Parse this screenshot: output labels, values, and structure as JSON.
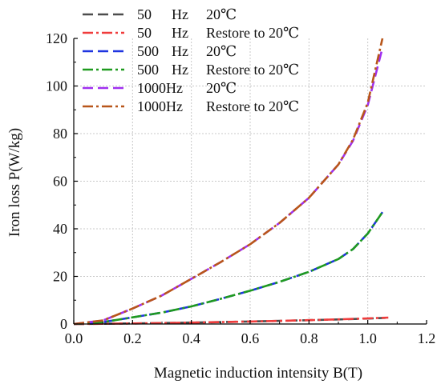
{
  "chart_data": {
    "type": "line",
    "title": "",
    "xlabel": "Magnetic induction intensity B(T)",
    "ylabel": "Iron loss P(W/kg)",
    "xlim": [
      0.0,
      1.2
    ],
    "ylim": [
      0,
      120
    ],
    "xticks": [
      "0.0",
      "0.2",
      "0.4",
      "0.6",
      "0.8",
      "1.0",
      "1.2"
    ],
    "yticks": [
      "0",
      "20",
      "40",
      "60",
      "80",
      "100",
      "120"
    ],
    "grid": true,
    "legend_position": "top-left",
    "series": [
      {
        "name": "50 Hz 20℃",
        "legend": [
          "50",
          "Hz",
          "20℃"
        ],
        "color": "#4d4d4d",
        "dash": "dash",
        "x": [
          0.0,
          0.1,
          0.2,
          0.3,
          0.4,
          0.5,
          0.6,
          0.7,
          0.8,
          0.9,
          1.0,
          1.06
        ],
        "y": [
          0.0,
          0.1,
          0.25,
          0.4,
          0.6,
          0.8,
          1.05,
          1.3,
          1.6,
          1.9,
          2.3,
          2.6
        ]
      },
      {
        "name": "50 Hz Restore to 20℃",
        "legend": [
          "50",
          "Hz",
          "Restore to 20℃"
        ],
        "color": "#f03c3c",
        "dash": "dashdot",
        "x": [
          0.0,
          0.1,
          0.2,
          0.3,
          0.4,
          0.5,
          0.6,
          0.7,
          0.8,
          0.9,
          1.0,
          1.07
        ],
        "y": [
          0.0,
          0.1,
          0.25,
          0.4,
          0.6,
          0.8,
          1.05,
          1.3,
          1.6,
          1.95,
          2.35,
          2.7
        ]
      },
      {
        "name": "500 Hz 20℃",
        "legend": [
          "500",
          "Hz",
          "20℃"
        ],
        "color": "#1f35e0",
        "dash": "dash",
        "x": [
          0.0,
          0.1,
          0.2,
          0.3,
          0.4,
          0.5,
          0.6,
          0.7,
          0.8,
          0.9,
          0.95,
          1.0,
          1.05
        ],
        "y": [
          0.0,
          0.8,
          2.8,
          4.8,
          7.4,
          10.6,
          14.0,
          17.7,
          21.9,
          27.3,
          31.5,
          38.0,
          47.0
        ]
      },
      {
        "name": "500 Hz Restore to 20℃",
        "legend": [
          "500",
          "Hz",
          "Restore to 20℃"
        ],
        "color": "#1f9a1f",
        "dash": "dashdot",
        "x": [
          0.0,
          0.1,
          0.2,
          0.3,
          0.4,
          0.5,
          0.6,
          0.7,
          0.8,
          0.9,
          0.95,
          1.0,
          1.05
        ],
        "y": [
          0.0,
          0.8,
          2.8,
          4.8,
          7.4,
          10.6,
          14.0,
          17.7,
          21.9,
          27.3,
          31.5,
          38.0,
          47.0
        ]
      },
      {
        "name": "1000Hz 20℃",
        "legend": [
          "1000Hz",
          "",
          "20℃"
        ],
        "color": "#a030f0",
        "dash": "dash",
        "x": [
          0.0,
          0.1,
          0.2,
          0.3,
          0.4,
          0.5,
          0.6,
          0.7,
          0.8,
          0.9,
          0.95,
          1.0,
          1.05
        ],
        "y": [
          0.0,
          1.5,
          6.5,
          12.0,
          19.0,
          26.0,
          33.5,
          42.5,
          53.0,
          67.0,
          77.0,
          92.0,
          116.0
        ]
      },
      {
        "name": "1000Hz Restore to 20℃",
        "legend": [
          "1000Hz",
          "",
          "Restore to 20℃"
        ],
        "color": "#b8561a",
        "dash": "dashdot",
        "x": [
          0.0,
          0.1,
          0.2,
          0.3,
          0.4,
          0.5,
          0.6,
          0.7,
          0.8,
          0.9,
          0.95,
          1.0,
          1.05
        ],
        "y": [
          0.0,
          1.5,
          6.5,
          12.0,
          19.0,
          26.0,
          33.5,
          42.5,
          53.0,
          67.0,
          77.5,
          93.0,
          120.0
        ]
      }
    ]
  }
}
